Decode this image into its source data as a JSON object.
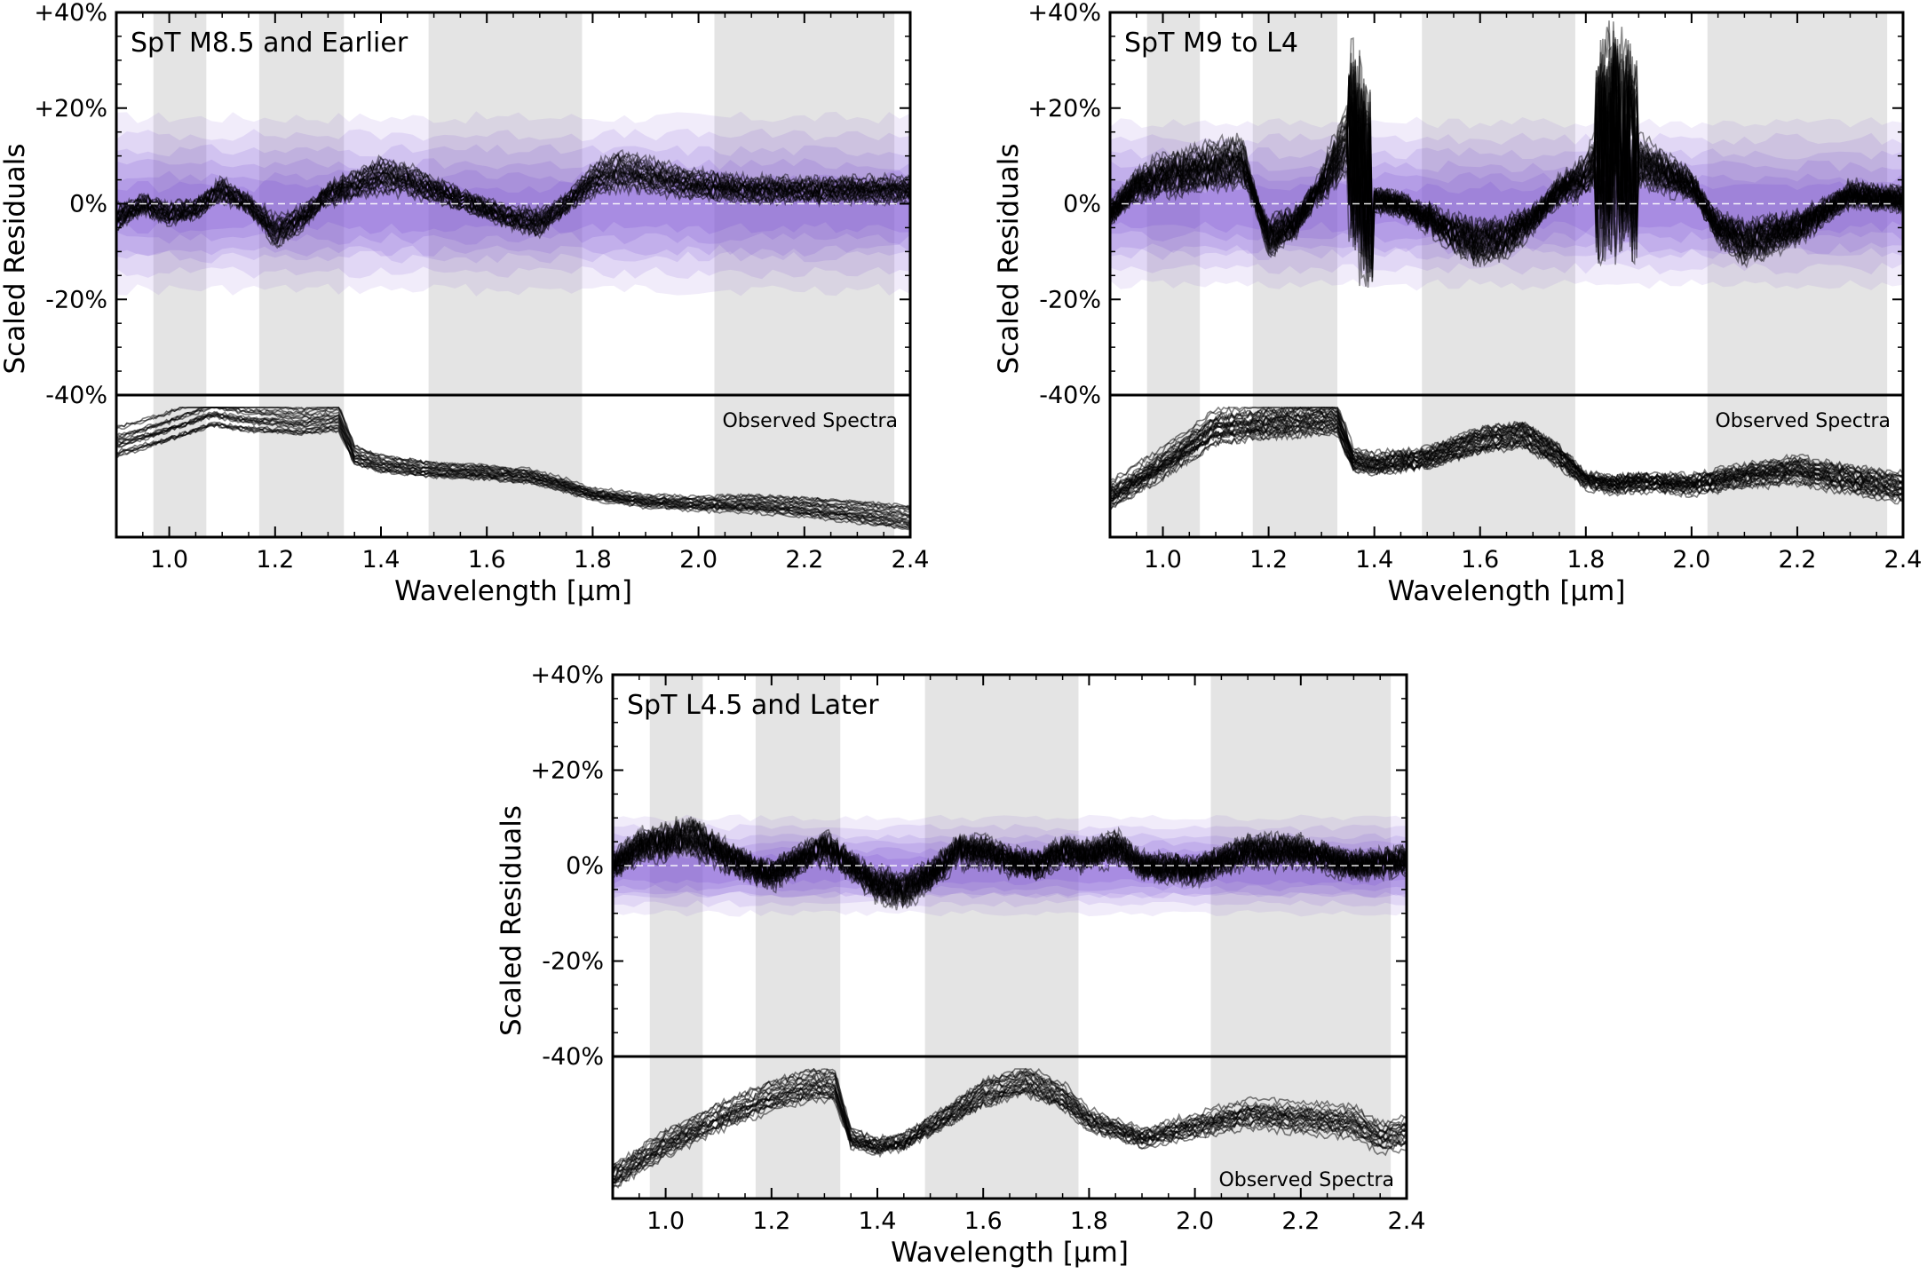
{
  "chart_data": [
    {
      "type": "line",
      "title": "SpT M8.5 and Earlier",
      "xlabel": "Wavelength [µm]",
      "ylabel": "Scaled Residuals",
      "xlim": [
        0.9,
        2.4
      ],
      "ylim": [
        -40,
        40
      ],
      "x_ticks": [
        "1.0",
        "1.2",
        "1.4",
        "1.6",
        "1.8",
        "2.0",
        "2.2",
        "2.4"
      ],
      "y_ticks": [
        "+40%",
        "+20%",
        "0%",
        "-20%",
        "-40%"
      ],
      "shaded_bands_um": [
        [
          0.97,
          1.07
        ],
        [
          1.17,
          1.33
        ],
        [
          1.49,
          1.78
        ],
        [
          2.03,
          2.37
        ]
      ],
      "lower_panel_label": "Observed Spectra",
      "residual_band_halfwidth_pct": 18,
      "residual_curve_um": [
        0.9,
        0.95,
        1.0,
        1.05,
        1.1,
        1.15,
        1.2,
        1.25,
        1.3,
        1.35,
        1.4,
        1.45,
        1.5,
        1.55,
        1.6,
        1.65,
        1.7,
        1.75,
        1.8,
        1.85,
        1.9,
        2.0,
        2.1,
        2.2,
        2.3,
        2.4
      ],
      "residual_curve_pct": [
        -3,
        0,
        -2,
        -1,
        3,
        0,
        -6,
        -3,
        2,
        4,
        6,
        5,
        3,
        1,
        -1,
        -3,
        -4,
        0,
        5,
        7,
        6,
        4,
        3,
        3,
        3,
        3
      ],
      "spectrum_curve_um": [
        0.9,
        1.0,
        1.08,
        1.15,
        1.2,
        1.25,
        1.32,
        1.35,
        1.4,
        1.5,
        1.6,
        1.68,
        1.75,
        1.8,
        1.9,
        2.0,
        2.1,
        2.2,
        2.3,
        2.4
      ],
      "spectrum_curve_norm": [
        0.72,
        0.85,
        0.98,
        0.93,
        0.92,
        0.9,
        0.93,
        0.62,
        0.55,
        0.5,
        0.48,
        0.45,
        0.37,
        0.3,
        0.24,
        0.22,
        0.22,
        0.19,
        0.15,
        0.1
      ],
      "colors": {
        "residual_band": "#7b4fd6",
        "lines": "#000000",
        "shaded": "#d9d9d9"
      }
    },
    {
      "type": "line",
      "title": "SpT M9 to L4",
      "xlabel": "Wavelength [µm]",
      "ylabel": "Scaled Residuals",
      "xlim": [
        0.9,
        2.4
      ],
      "ylim": [
        -40,
        40
      ],
      "x_ticks": [
        "1.0",
        "1.2",
        "1.4",
        "1.6",
        "1.8",
        "2.0",
        "2.2",
        "2.4"
      ],
      "y_ticks": [
        "+40%",
        "+20%",
        "0%",
        "-20%",
        "-40%"
      ],
      "shaded_bands_um": [
        [
          0.97,
          1.07
        ],
        [
          1.17,
          1.33
        ],
        [
          1.49,
          1.78
        ],
        [
          2.03,
          2.37
        ]
      ],
      "lower_panel_label": "Observed Spectra",
      "residual_band_halfwidth_pct": 17,
      "residual_curve_um": [
        0.9,
        0.95,
        1.0,
        1.05,
        1.1,
        1.15,
        1.2,
        1.25,
        1.3,
        1.35,
        1.4,
        1.45,
        1.5,
        1.55,
        1.6,
        1.65,
        1.7,
        1.75,
        1.8,
        1.85,
        1.9,
        2.0,
        2.05,
        2.1,
        2.2,
        2.3,
        2.4
      ],
      "residual_curve_pct": [
        -2,
        4,
        6,
        7,
        8,
        9,
        -7,
        -4,
        4,
        14,
        1,
        0,
        -3,
        -6,
        -8,
        -7,
        -3,
        3,
        6,
        15,
        9,
        4,
        -5,
        -8,
        -5,
        2,
        1
      ],
      "spectrum_curve_um": [
        0.9,
        1.0,
        1.1,
        1.2,
        1.3,
        1.33,
        1.36,
        1.4,
        1.5,
        1.6,
        1.68,
        1.75,
        1.8,
        1.85,
        1.9,
        2.0,
        2.1,
        2.2,
        2.3,
        2.4
      ],
      "spectrum_curve_norm": [
        0.28,
        0.55,
        0.85,
        0.9,
        0.93,
        0.92,
        0.58,
        0.55,
        0.6,
        0.75,
        0.8,
        0.62,
        0.42,
        0.38,
        0.4,
        0.38,
        0.45,
        0.5,
        0.42,
        0.35
      ],
      "colors": {
        "residual_band": "#7b4fd6",
        "lines": "#000000",
        "shaded": "#d9d9d9"
      }
    },
    {
      "type": "line",
      "title": "SpT L4.5 and Later",
      "xlabel": "Wavelength [µm]",
      "ylabel": "Scaled Residuals",
      "xlim": [
        0.9,
        2.4
      ],
      "ylim": [
        -40,
        40
      ],
      "x_ticks": [
        "1.0",
        "1.2",
        "1.4",
        "1.6",
        "1.8",
        "2.0",
        "2.2",
        "2.4"
      ],
      "y_ticks": [
        "+40%",
        "+20%",
        "0%",
        "-20%",
        "-40%"
      ],
      "shaded_bands_um": [
        [
          0.97,
          1.07
        ],
        [
          1.17,
          1.33
        ],
        [
          1.49,
          1.78
        ],
        [
          2.03,
          2.37
        ]
      ],
      "lower_panel_label": "Observed Spectra",
      "residual_band_halfwidth_pct": 10,
      "residual_curve_um": [
        0.9,
        0.95,
        1.0,
        1.05,
        1.1,
        1.15,
        1.2,
        1.25,
        1.3,
        1.35,
        1.4,
        1.45,
        1.5,
        1.55,
        1.6,
        1.65,
        1.7,
        1.75,
        1.8,
        1.85,
        1.9,
        2.0,
        2.1,
        2.2,
        2.3,
        2.4
      ],
      "residual_curve_pct": [
        0,
        4,
        5,
        6,
        3,
        0,
        -2,
        1,
        4,
        0,
        -4,
        -5,
        -2,
        3,
        3,
        1,
        0,
        3,
        2,
        4,
        0,
        -1,
        3,
        3,
        0,
        1
      ],
      "spectrum_curve_um": [
        0.9,
        1.0,
        1.1,
        1.2,
        1.28,
        1.32,
        1.35,
        1.4,
        1.45,
        1.5,
        1.6,
        1.68,
        1.75,
        1.8,
        1.9,
        2.0,
        2.1,
        2.2,
        2.3,
        2.35,
        2.4
      ],
      "spectrum_curve_norm": [
        0.12,
        0.4,
        0.62,
        0.8,
        0.9,
        0.88,
        0.45,
        0.38,
        0.42,
        0.55,
        0.82,
        0.93,
        0.8,
        0.6,
        0.45,
        0.55,
        0.65,
        0.62,
        0.58,
        0.45,
        0.5
      ],
      "colors": {
        "residual_band": "#7b4fd6",
        "lines": "#000000",
        "shaded": "#d9d9d9"
      }
    }
  ]
}
